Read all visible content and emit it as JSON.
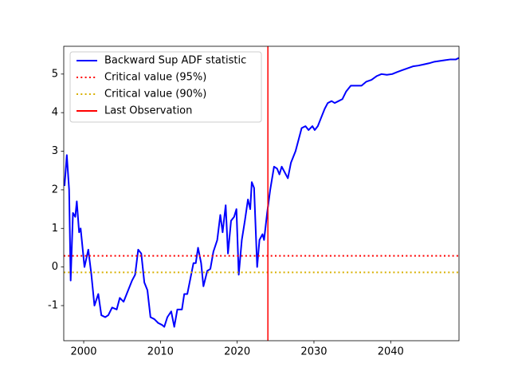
{
  "chart_data": {
    "type": "line",
    "xlim": [
      1997.4,
      2048.9
    ],
    "ylim": [
      -1.91,
      5.72
    ],
    "xticks": [
      2000,
      2010,
      2020,
      2030,
      2040
    ],
    "yticks": [
      -1,
      0,
      1,
      2,
      3,
      4,
      5
    ],
    "legend": "upper left",
    "series": [
      {
        "name": "Backward Sup ADF statistic",
        "color": "#0000ff",
        "linestyle": "solid",
        "x": [
          1997.5,
          1997.8,
          1998.1,
          1998.3,
          1998.6,
          1998.9,
          1999.1,
          1999.4,
          1999.6,
          2000.1,
          2000.6,
          2001.0,
          2001.4,
          2001.9,
          2002.3,
          2002.8,
          2003.2,
          2003.7,
          2004.3,
          2004.7,
          2005.2,
          2005.8,
          2006.3,
          2006.7,
          2007.1,
          2007.5,
          2007.9,
          2008.3,
          2008.7,
          2009.2,
          2009.7,
          2010.2,
          2010.5,
          2010.9,
          2011.4,
          2011.8,
          2012.2,
          2012.8,
          2013.1,
          2013.5,
          2013.9,
          2014.3,
          2014.6,
          2014.9,
          2015.3,
          2015.6,
          2016.1,
          2016.5,
          2016.9,
          2017.4,
          2017.8,
          2018.1,
          2018.5,
          2018.8,
          2019.2,
          2019.6,
          2019.9,
          2020.2,
          2020.6,
          2021.0,
          2021.4,
          2021.7,
          2021.9,
          2022.2,
          2022.6,
          2022.9,
          2023.3,
          2023.5,
          2023.9,
          2024.3,
          2024.8,
          2025.2,
          2025.5,
          2025.8,
          2026.2,
          2026.6,
          2027.0,
          2027.6,
          2028.0,
          2028.4,
          2028.9,
          2029.3,
          2029.8,
          2030.1,
          2030.5,
          2030.9,
          2031.4,
          2031.8,
          2032.3,
          2032.7,
          2033.2,
          2033.7,
          2034.2,
          2034.8,
          2035.5,
          2036.2,
          2036.8,
          2037.5,
          2038.2,
          2038.8,
          2039.5,
          2040.2,
          2040.8,
          2041.5,
          2042.2,
          2042.9,
          2043.6,
          2044.3,
          2045.0,
          2045.7,
          2046.4,
          2047.1,
          2047.8,
          2048.5,
          2048.9
        ],
        "values": [
          2.1,
          2.9,
          2.0,
          -0.35,
          1.4,
          1.3,
          1.7,
          0.9,
          1.0,
          0.0,
          0.45,
          -0.2,
          -1.0,
          -0.7,
          -1.25,
          -1.3,
          -1.25,
          -1.05,
          -1.1,
          -0.8,
          -0.9,
          -0.6,
          -0.35,
          -0.2,
          0.45,
          0.35,
          -0.4,
          -0.6,
          -1.3,
          -1.35,
          -1.45,
          -1.5,
          -1.55,
          -1.3,
          -1.15,
          -1.55,
          -1.1,
          -1.1,
          -0.7,
          -0.7,
          -0.3,
          0.1,
          0.1,
          0.5,
          0.1,
          -0.5,
          -0.1,
          -0.05,
          0.4,
          0.7,
          1.35,
          0.9,
          1.6,
          0.35,
          1.2,
          1.3,
          1.5,
          -0.2,
          0.7,
          1.2,
          1.75,
          1.5,
          2.2,
          2.05,
          0.0,
          0.7,
          0.85,
          0.7,
          1.4,
          2.0,
          2.6,
          2.55,
          2.4,
          2.6,
          2.45,
          2.3,
          2.7,
          3.0,
          3.3,
          3.6,
          3.65,
          3.55,
          3.65,
          3.55,
          3.65,
          3.85,
          4.1,
          4.25,
          4.3,
          4.25,
          4.3,
          4.35,
          4.55,
          4.7,
          4.7,
          4.7,
          4.8,
          4.85,
          4.95,
          5.0,
          4.98,
          5.0,
          5.05,
          5.1,
          5.15,
          5.2,
          5.22,
          5.25,
          5.28,
          5.32,
          5.34,
          5.36,
          5.38,
          5.38,
          5.42
        ]
      }
    ],
    "hlines": [
      {
        "name": "Critical value (95%)",
        "color": "#ff0000",
        "linestyle": "dotted",
        "value": 0.29
      },
      {
        "name": "Critical value (90%)",
        "color": "#d8b000",
        "linestyle": "dotted",
        "value": -0.14
      }
    ],
    "vlines": [
      {
        "name": "Last Observation",
        "color": "#ff0000",
        "linestyle": "solid",
        "x": 2024
      }
    ]
  }
}
